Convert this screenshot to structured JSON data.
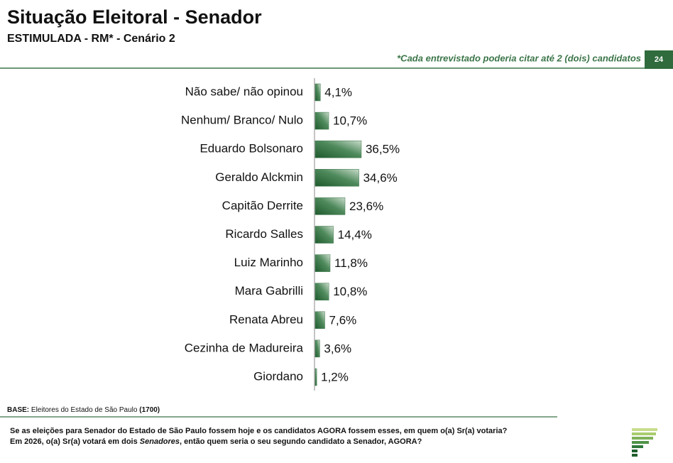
{
  "chart_data": {
    "type": "hbar",
    "title": "Situação Eleitoral - Senador",
    "subtitle": "ESTIMULADA - RM* - Cenário 2",
    "note": "*Cada entrevistado poderia citar até 2 (dois) candidatos",
    "page_number": "24",
    "categories": [
      "Não sabe/ não opinou",
      "Nenhum/ Branco/ Nulo",
      "Eduardo Bolsonaro",
      "Geraldo Alckmin",
      "Capitão Derrite",
      "Ricardo Salles",
      "Luiz Marinho",
      "Mara Gabrilli",
      "Renata Abreu",
      "Cezinha de Madureira",
      "Giordano"
    ],
    "values": [
      4.1,
      10.7,
      36.5,
      34.6,
      23.6,
      14.4,
      11.8,
      10.8,
      7.6,
      3.6,
      1.2
    ],
    "value_labels": [
      "4,1%",
      "10,7%",
      "36,5%",
      "34,6%",
      "23,6%",
      "14,4%",
      "11,8%",
      "10,8%",
      "7,6%",
      "3,6%",
      "1,2%"
    ],
    "color": "#3b7548",
    "base": {
      "label": "BASE:",
      "text": "Eleitores do Estado de São Paulo",
      "count": "(1700)"
    },
    "question": {
      "line1": "Se as eleições para Senador do Estado de São Paulo fossem hoje e os candidatos AGORA fossem esses, em quem o(a) Sr(a) votaria?",
      "line2_start": "Em 2026, o(a) Sr(a) votará em dois ",
      "line2_italic": "Senadores",
      "line2_end": ", então quem seria o seu segundo candidato a Senador, AGORA?"
    }
  }
}
